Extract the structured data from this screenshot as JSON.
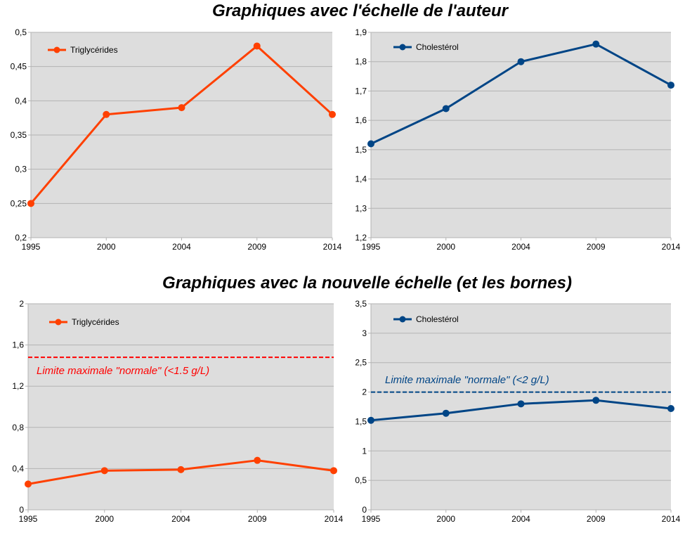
{
  "headings": {
    "top": "Graphiques avec l'échelle de l'auteur",
    "bottom": "Graphiques avec la nouvelle échelle (et les bornes)"
  },
  "chart_data": [
    {
      "id": "tg-author",
      "type": "line",
      "x": [
        "1995",
        "2000",
        "2004",
        "2009",
        "2014"
      ],
      "series": [
        {
          "name": "Triglycérides",
          "values": [
            0.25,
            0.38,
            0.39,
            0.48,
            0.38
          ],
          "color": "#ff4000"
        }
      ],
      "ylim": [
        0.2,
        0.5
      ],
      "yticks": [
        "0,2",
        "0,25",
        "0,3",
        "0,35",
        "0,4",
        "0,45",
        "0,5"
      ],
      "ytick_values": [
        0.2,
        0.25,
        0.3,
        0.35,
        0.4,
        0.45,
        0.5
      ],
      "grid": true,
      "background": "#dddddd",
      "legend": "top-left"
    },
    {
      "id": "chol-author",
      "type": "line",
      "x": [
        "1995",
        "2000",
        "2004",
        "2009",
        "2014"
      ],
      "series": [
        {
          "name": "Cholestérol",
          "values": [
            1.52,
            1.64,
            1.8,
            1.86,
            1.72
          ],
          "color": "#004586"
        }
      ],
      "ylim": [
        1.2,
        1.9
      ],
      "yticks": [
        "1,2",
        "1,3",
        "1,4",
        "1,5",
        "1,6",
        "1,7",
        "1,8",
        "1,9"
      ],
      "ytick_values": [
        1.2,
        1.3,
        1.4,
        1.5,
        1.6,
        1.7,
        1.8,
        1.9
      ],
      "grid": true,
      "background": "#dddddd",
      "legend": "top-left"
    },
    {
      "id": "tg-new",
      "type": "line",
      "x": [
        "1995",
        "2000",
        "2004",
        "2009",
        "2014"
      ],
      "series": [
        {
          "name": "Triglycérides",
          "values": [
            0.25,
            0.38,
            0.39,
            0.48,
            0.38
          ],
          "color": "#ff4000"
        }
      ],
      "ylim": [
        0,
        2
      ],
      "yticks": [
        "0",
        "0,4",
        "0,8",
        "1,2",
        "1,6",
        "2"
      ],
      "ytick_values": [
        0,
        0.4,
        0.8,
        1.2,
        1.6,
        2
      ],
      "grid": true,
      "background": "#dddddd",
      "legend": "top-left",
      "limit": {
        "value": 1.48,
        "label": "Limite maximale \"normale\" (<1.5 g/L)",
        "color": "#ff0000",
        "label_position": "below"
      }
    },
    {
      "id": "chol-new",
      "type": "line",
      "x": [
        "1995",
        "2000",
        "2004",
        "2009",
        "2014"
      ],
      "series": [
        {
          "name": "Cholestérol",
          "values": [
            1.52,
            1.64,
            1.8,
            1.86,
            1.72
          ],
          "color": "#004586"
        }
      ],
      "ylim": [
        0,
        3.5
      ],
      "yticks": [
        "0",
        "0,5",
        "1",
        "1,5",
        "2",
        "2,5",
        "3",
        "3,5"
      ],
      "ytick_values": [
        0,
        0.5,
        1,
        1.5,
        2,
        2.5,
        3,
        3.5
      ],
      "grid": true,
      "background": "#dddddd",
      "legend": "top-left",
      "limit": {
        "value": 2,
        "label": "Limite maximale \"normale\" (<2 g/L)",
        "color": "#004586",
        "label_position": "above"
      }
    }
  ]
}
